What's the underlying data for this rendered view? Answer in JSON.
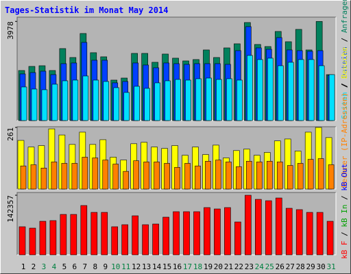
{
  "chart_data": [
    {
      "type": "bar",
      "title": "Tages-Statistik im Monat May 2014",
      "ylim": [
        0,
        4150
      ],
      "yticks": [
        3978
      ],
      "series": [
        {
          "name": "Anfragen",
          "color": "#00805c",
          "values": [
            2008,
            2173,
            2200,
            2008,
            2888,
            2530,
            3493,
            2723,
            2558,
            1623,
            1705,
            2695,
            2695,
            2338,
            2668,
            2503,
            2393,
            2448,
            2833,
            2530,
            2915,
            3080,
            3933,
            3053,
            2970,
            3575,
            3163,
            3658,
            2833,
            3978,
            1843
          ]
        },
        {
          "name": "Dateien",
          "color": "#0040ff",
          "values": [
            1870,
            1925,
            1980,
            1843,
            2283,
            2310,
            3135,
            2420,
            2420,
            1513,
            1568,
            2310,
            2228,
            2118,
            2310,
            2283,
            2255,
            2283,
            2283,
            2283,
            2255,
            2805,
            3768,
            2915,
            2860,
            3328,
            2833,
            2805,
            2778,
            2805,
            1815
          ]
        },
        {
          "name": "Seiten",
          "color": "#00e0ff",
          "values": [
            1348,
            1265,
            1238,
            1458,
            1595,
            1623,
            1788,
            1623,
            1568,
            1320,
            1128,
            1375,
            1293,
            1513,
            1595,
            1650,
            1623,
            1678,
            1705,
            1650,
            1678,
            1623,
            2613,
            2448,
            2503,
            2200,
            2338,
            2448,
            2448,
            2200,
            1843
          ]
        }
      ]
    },
    {
      "type": "bar",
      "ylim": [
        0,
        264
      ],
      "yticks": [
        261
      ],
      "series": [
        {
          "name": "Besuche",
          "color": "#ffff00",
          "values": [
            206,
            178,
            184,
            255,
            229,
            189,
            241,
            189,
            209,
            135,
            123,
            192,
            198,
            178,
            172,
            184,
            143,
            178,
            146,
            186,
            132,
            163,
            169,
            143,
            155,
            204,
            212,
            161,
            241,
            261,
            218
          ]
        },
        {
          "name": "Rechner (IP-Adressen)",
          "color": "#ff8000",
          "values": [
            98,
            103,
            89,
            115,
            109,
            109,
            135,
            132,
            123,
            106,
            75,
            120,
            115,
            115,
            109,
            92,
            109,
            98,
            118,
            123,
            115,
            95,
            118,
            115,
            118,
            115,
            100,
            109,
            126,
            129,
            103
          ]
        }
      ]
    },
    {
      "type": "bar",
      "ylim": [
        0,
        148900
      ],
      "yticks": [
        142357
      ],
      "categories": [
        "1",
        "2",
        "3",
        "4",
        "5",
        "6",
        "7",
        "8",
        "9",
        "10",
        "11",
        "12",
        "13",
        "14",
        "15",
        "16",
        "17",
        "18",
        "19",
        "20",
        "21",
        "22",
        "23",
        "24",
        "25",
        "26",
        "27",
        "28",
        "29",
        "30",
        "31"
      ],
      "weekend": [
        2,
        3,
        9,
        10,
        16,
        17,
        23,
        24,
        30
      ],
      "weekend_color": "#008040",
      "series": [
        {
          "name": "kB F",
          "color": "#ff0000",
          "values": [
            67076,
            63804,
            80164,
            81800,
            96524,
            96524,
            117792,
            101432,
            101432,
            67076,
            71984,
            93252,
            71984,
            73620,
            89980,
            103068,
            103068,
            103068,
            112884,
            109612,
            112884,
            78528,
            142357,
            132516,
            129244,
            135788,
            111248,
            107976,
            101432,
            101432,
            80164
          ]
        }
      ],
      "extra_legend": [
        {
          "name": "kB In",
          "color": "#00a000"
        },
        {
          "name": "kB Out",
          "color": "#0000ff"
        }
      ]
    }
  ]
}
